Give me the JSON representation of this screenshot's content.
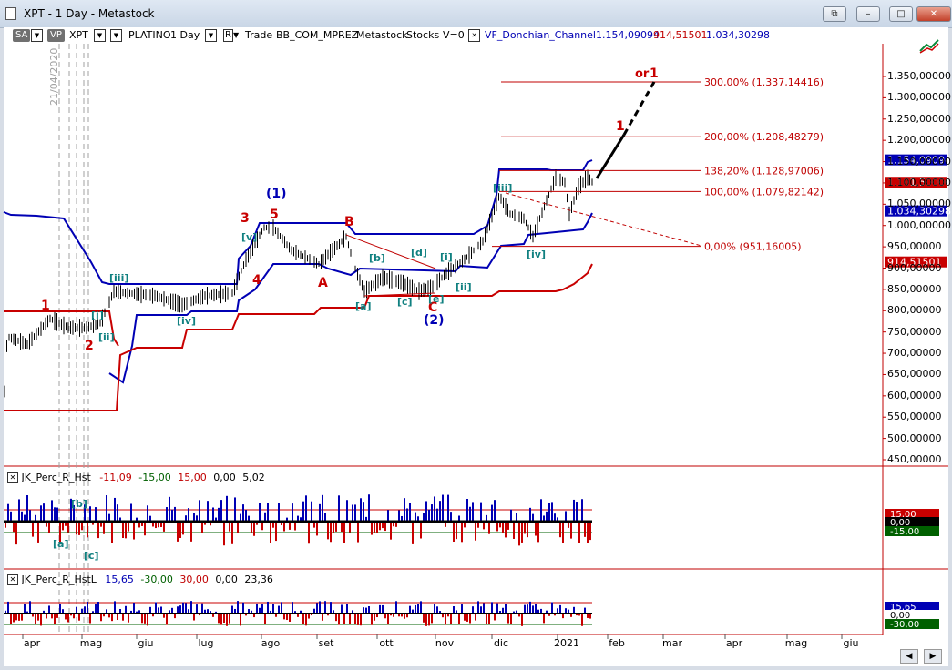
{
  "window": {
    "title": "XPT - 1 Day - Metastock"
  },
  "toolbar": {
    "sa": "SA",
    "vp": "VP",
    "symbol": "XPT",
    "name": "PLATINO",
    "period": "1 Day",
    "r": "R",
    "trade_label": "Trade",
    "template": "BB_COM_MPREZ",
    "source": "Metastock",
    "type": "Stocks",
    "v": "V=0",
    "indicator": "VF_Donchian_Channel",
    "ind_val1": "1.154,09094",
    "ind_val2": "914,51501",
    "ind_val3": "1.034,30298"
  },
  "colors": {
    "blue": "#0000b4",
    "red": "#c80000",
    "price": "#000000",
    "teal": "#108080",
    "axisred": "#c00000"
  },
  "vertical_date": "21/04/2020",
  "price_axis": [
    "1.350,00000",
    "1.300,00000",
    "1.250,00000",
    "1.200,00000",
    "1.150,00000",
    "1.100,00000",
    "1.050,00000",
    "1.000,00000",
    "950,00000",
    "900,00000",
    "850,00000",
    "800,00000",
    "750,00000",
    "700,00000",
    "650,00000",
    "600,00000",
    "550,00000",
    "500,00000",
    "450,00000"
  ],
  "price_tags": {
    "upper": "1.154,09094",
    "last": "1.101,50000",
    "mid": "1.034,30298",
    "lower": "914,51501"
  },
  "fib_levels": [
    {
      "label": "300,00% (1.337,14416)",
      "value": 1337.14
    },
    {
      "label": "200,00% (1.208,48279)",
      "value": 1208.48
    },
    {
      "label": "138,20% (1.128,97006)",
      "value": 1128.97
    },
    {
      "label": "100,00% (1.079,82142)",
      "value": 1079.82
    },
    {
      "label": "0,00% (951,16005)",
      "value": 951.16
    }
  ],
  "wave_labels": {
    "red": [
      "1",
      "2",
      "3",
      "4",
      "5",
      "A",
      "B",
      "C",
      "1",
      "or 1"
    ],
    "blue": [
      "(1)",
      "(2)"
    ],
    "teal": [
      "[i]",
      "[ii]",
      "[iii]",
      "[iv]",
      "[v]",
      "[a]",
      "[b]",
      "[c]",
      "[d]",
      "[e]",
      "[i]",
      "[ii]",
      "[iii]",
      "[iv]"
    ]
  },
  "panel1": {
    "name": "JK_Perc_R_Hst",
    "v1": "-11,09",
    "v2": "-15,00",
    "v3": "15,00",
    "v4": "0,00",
    "v5": "5,02",
    "axis_top": "15,00",
    "axis_mid": "0,00",
    "axis_bot": "-15,00",
    "labels": [
      "[b]",
      "[a]",
      "[c]"
    ]
  },
  "panel2": {
    "name": "JK_Perc_R_HstL",
    "v1": "15,65",
    "v2": "-30,00",
    "v3": "30,00",
    "v4": "0,00",
    "v5": "23,36",
    "axis_top": "15,65",
    "axis_mid": "0,00",
    "axis_bot": "-30,00"
  },
  "months": [
    "apr",
    "mag",
    "giu",
    "lug",
    "ago",
    "set",
    "ott",
    "nov",
    "dic",
    "2021",
    "feb",
    "mar",
    "apr",
    "mag",
    "giu"
  ]
}
